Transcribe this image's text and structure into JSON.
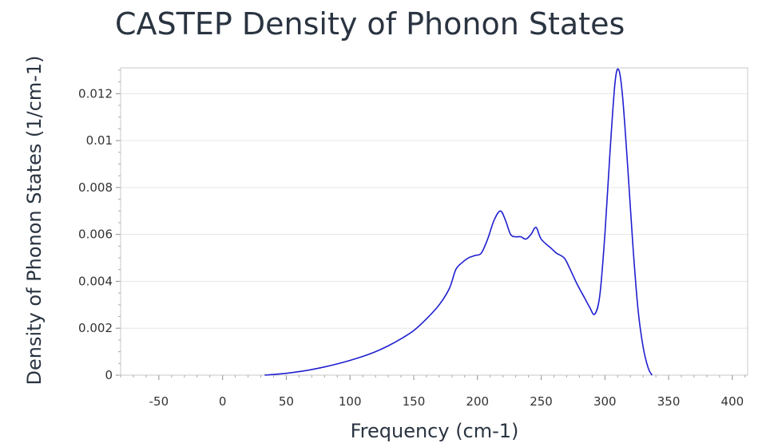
{
  "chart_data": {
    "type": "line",
    "title": "CASTEP Density of Phonon States",
    "xlabel": "Frequency (cm-1)",
    "ylabel": "Density of Phonon States (1/cm-1)",
    "xlim": [
      -80,
      412
    ],
    "ylim": [
      0,
      0.0131
    ],
    "xticks": [
      -50,
      0,
      50,
      100,
      150,
      200,
      250,
      300,
      350,
      400
    ],
    "yticks": [
      0,
      0.002,
      0.004,
      0.006,
      0.008,
      0.01,
      0.012
    ],
    "ytick_labels": [
      "0",
      "0.002",
      "0.004",
      "0.006",
      "0.008",
      "0.01",
      "0.012"
    ],
    "grid": true,
    "series": [
      {
        "name": "Density of Phonon States",
        "color": "#1f1fd0",
        "x": [
          33,
          40,
          50,
          60,
          70,
          80,
          90,
          100,
          110,
          120,
          130,
          140,
          150,
          160,
          170,
          178,
          183,
          188,
          193,
          198,
          203,
          208,
          213,
          218,
          222,
          226,
          230,
          234,
          238,
          242,
          246,
          250,
          258,
          262,
          268,
          272,
          278,
          284,
          288,
          292,
          296,
          300,
          304,
          308,
          311,
          314,
          318,
          322,
          326,
          330,
          334,
          337
        ],
        "y": [
          0,
          3e-05,
          8e-05,
          0.00015,
          0.00024,
          0.00035,
          0.00048,
          0.00063,
          0.0008,
          0.001,
          0.00125,
          0.00155,
          0.0019,
          0.0024,
          0.003,
          0.0037,
          0.0045,
          0.0048,
          0.005,
          0.0051,
          0.0052,
          0.0058,
          0.0066,
          0.007,
          0.0066,
          0.006,
          0.0059,
          0.0059,
          0.0058,
          0.006,
          0.0063,
          0.0058,
          0.0054,
          0.0052,
          0.005,
          0.0046,
          0.0039,
          0.0033,
          0.0029,
          0.0026,
          0.0034,
          0.006,
          0.0095,
          0.0125,
          0.013,
          0.0118,
          0.0088,
          0.0055,
          0.0028,
          0.0012,
          0.0003,
          0
        ]
      }
    ]
  }
}
